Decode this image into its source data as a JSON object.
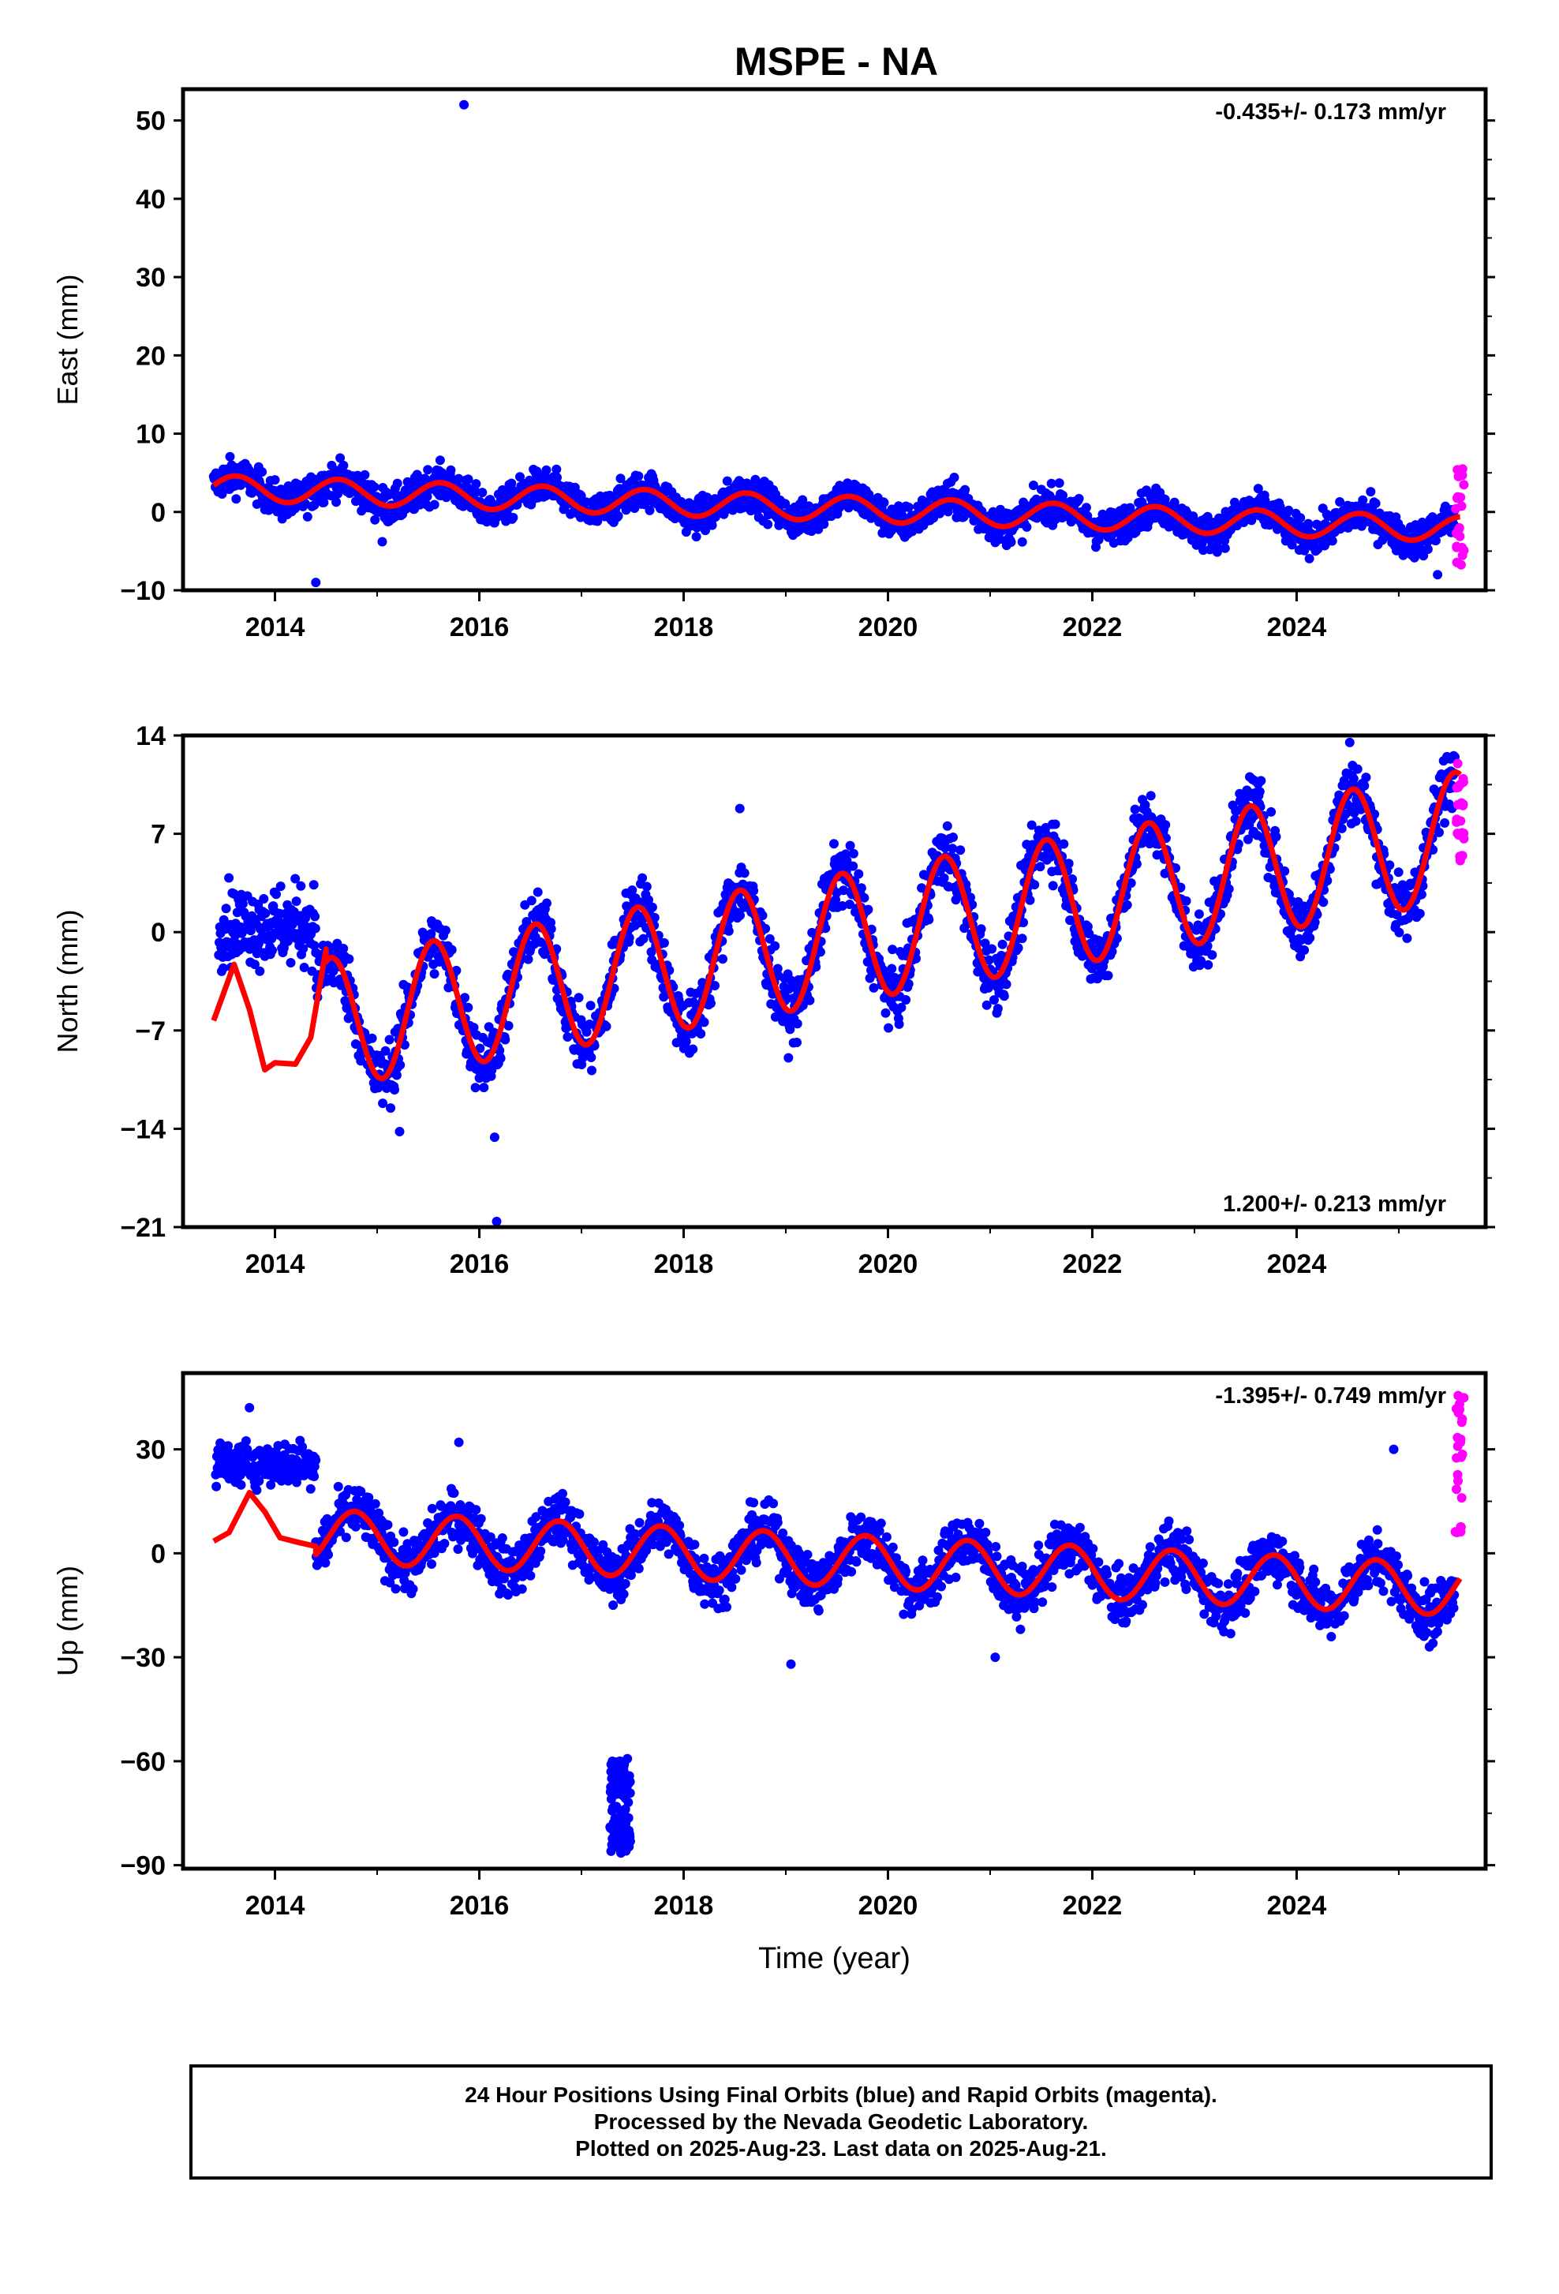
{
  "title": "MSPE - NA",
  "footer": {
    "line1": "24 Hour Positions Using Final Orbits (blue) and Rapid Orbits (magenta).",
    "line2": "Processed by the Nevada Geodetic Laboratory.",
    "line3": "Plotted on 2025-Aug-23. Last data on 2025-Aug-21."
  },
  "colors": {
    "final": "#0000ff",
    "rapid": "#ff00ff",
    "model": "#ff0000",
    "frame": "#000000"
  },
  "chart_data": [
    {
      "type": "scatter",
      "ylabel": "East (mm)",
      "xlabel": "",
      "rate_text": "-0.435+/- 0.173 mm/yr",
      "rate_position": "top-right",
      "xlim": [
        2013.1,
        2025.85
      ],
      "ylim": [
        -10,
        54
      ],
      "yticks": [
        50,
        40,
        30,
        20,
        10,
        0,
        -10
      ],
      "ytick_labels": [
        "50",
        "40",
        "30",
        "20",
        "10",
        "0",
        "−10"
      ],
      "xticks": [
        2014,
        2016,
        2018,
        2020,
        2022,
        2024
      ],
      "xtick_labels": [
        "2014",
        "2016",
        "2018",
        "2020",
        "2022",
        "2024"
      ],
      "model": {
        "start": 2013.4,
        "end": 2025.6,
        "intercept": 3.1,
        "trend": -0.435,
        "seasonal_amp": 1.6,
        "phase_peak": 0.62
      },
      "final_series": {
        "start": 2013.4,
        "end": 2025.55,
        "noise": 1.6
      },
      "rapid_series": {
        "start": 2025.55,
        "end": 2025.64,
        "min": -7,
        "max": 6
      },
      "outliers": [
        [
          2015.85,
          52
        ],
        [
          2014.4,
          -9
        ],
        [
          2015.05,
          -3.8
        ],
        [
          2025.38,
          -8
        ]
      ]
    },
    {
      "type": "scatter",
      "ylabel": "North (mm)",
      "xlabel": "",
      "rate_text": "1.200+/- 0.213 mm/yr",
      "rate_position": "bottom-right",
      "xlim": [
        2013.1,
        2025.85
      ],
      "ylim": [
        -21,
        14
      ],
      "yticks": [
        14,
        7,
        0,
        -7,
        -14,
        -21
      ],
      "ytick_labels": [
        "14",
        "7",
        "0",
        "−7",
        "−14",
        "−21"
      ],
      "xticks": [
        2014,
        2016,
        2018,
        2020,
        2022,
        2024
      ],
      "xtick_labels": [
        "2014",
        "2016",
        "2018",
        "2020",
        "2022",
        "2024"
      ],
      "model": {
        "start": 2013.4,
        "end": 2025.6,
        "intercept": -7.8,
        "trend": 1.2,
        "seasonal_amp": 4.6,
        "phase_peak": 0.55
      },
      "model_early": {
        "start": 2013.4,
        "end": 2014.5,
        "values": [
          [
            2013.4,
            -6.3
          ],
          [
            2013.6,
            -2.3
          ],
          [
            2013.75,
            -5.5
          ],
          [
            2013.9,
            -9.8
          ],
          [
            2014.0,
            -9.3
          ],
          [
            2014.2,
            -9.4
          ],
          [
            2014.35,
            -7.5
          ],
          [
            2014.5,
            -1.2
          ]
        ]
      },
      "final_early": {
        "start": 2013.45,
        "end": 2014.4,
        "center": 0.5,
        "noise": 2.0
      },
      "final_series": {
        "start": 2014.4,
        "end": 2025.55,
        "noise": 1.6
      },
      "rapid_series": {
        "start": 2025.55,
        "end": 2025.64,
        "min": 5,
        "max": 12
      },
      "outliers": [
        [
          2016.17,
          -20.6
        ],
        [
          2016.15,
          -14.6
        ],
        [
          2015.22,
          -14.2
        ],
        [
          2024.52,
          13.5
        ],
        [
          2018.55,
          8.8
        ]
      ]
    },
    {
      "type": "scatter",
      "ylabel": "Up (mm)",
      "xlabel": "Time (year)",
      "rate_text": "-1.395+/- 0.749 mm/yr",
      "rate_position": "top-right",
      "xlim": [
        2013.1,
        2025.85
      ],
      "ylim": [
        -91,
        52
      ],
      "yticks": [
        30,
        0,
        -30,
        -60,
        -90
      ],
      "ytick_labels": [
        "30",
        "0",
        "−30",
        "−60",
        "−90"
      ],
      "xticks": [
        2014,
        2016,
        2018,
        2020,
        2022,
        2024
      ],
      "xtick_labels": [
        "2014",
        "2016",
        "2018",
        "2020",
        "2022",
        "2024"
      ],
      "model": {
        "start": 2013.4,
        "end": 2025.6,
        "intercept": 6.5,
        "trend": -1.395,
        "seasonal_amp": 7.5,
        "phase_peak": 0.78
      },
      "model_early": {
        "start": 2013.4,
        "end": 2014.4,
        "values": [
          [
            2013.4,
            3.5
          ],
          [
            2013.55,
            6
          ],
          [
            2013.75,
            17.5
          ],
          [
            2013.9,
            12
          ],
          [
            2014.05,
            4.5
          ],
          [
            2014.25,
            3
          ],
          [
            2014.4,
            2
          ]
        ]
      },
      "final_early": {
        "start": 2013.42,
        "end": 2014.4,
        "center": 26,
        "noise": 4.5
      },
      "final_series": {
        "start": 2014.4,
        "end": 2025.55,
        "noise": 5.5
      },
      "rapid_series": {
        "start": 2025.55,
        "end": 2025.64,
        "min": 2,
        "max": 48
      },
      "cluster": {
        "x": [
          2017.28,
          2017.48
        ],
        "y": [
          -87,
          -59
        ]
      },
      "outliers": [
        [
          2013.75,
          42
        ],
        [
          2024.95,
          30
        ],
        [
          2025.3,
          -27
        ],
        [
          2021.05,
          -30
        ],
        [
          2019.05,
          -32
        ],
        [
          2015.8,
          32
        ]
      ]
    }
  ]
}
